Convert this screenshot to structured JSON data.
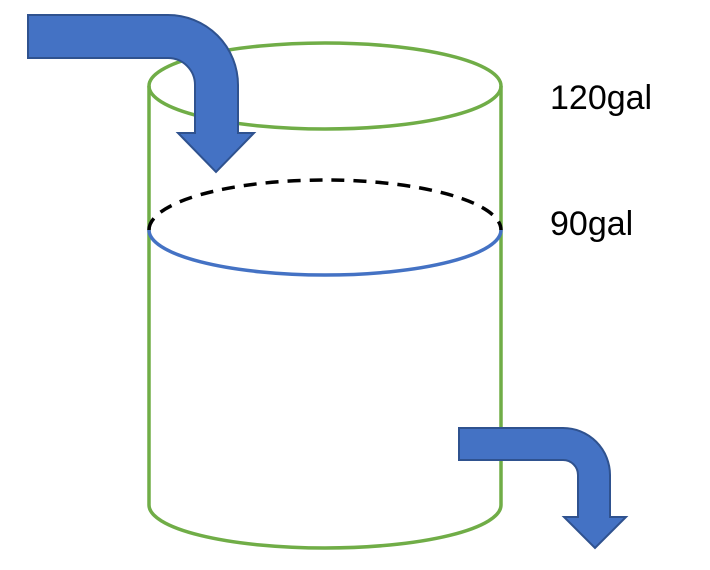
{
  "labels": {
    "capacity": "120gal",
    "current": "90gal"
  },
  "colors": {
    "tank_outline": "#70AD47",
    "water_surface": "#4472C4",
    "arrow_fill": "#4472C4",
    "arrow_stroke": "#2F528F",
    "capacity_line": "#000000",
    "background": "#FFFFFF"
  },
  "icons": {
    "inflow": "inflow-arrow-icon",
    "outflow": "outflow-arrow-icon"
  }
}
